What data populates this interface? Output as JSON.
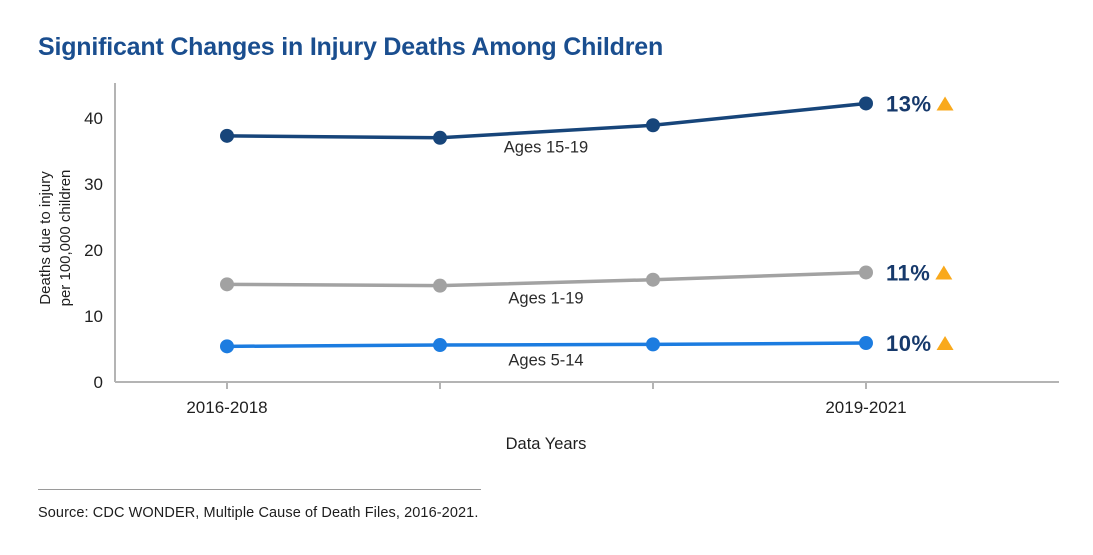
{
  "page": {
    "source_text": "Source: CDC WONDER, Multiple Cause of Death Files, 2016-2021."
  },
  "chart_data": {
    "type": "line",
    "title": "Significant Changes in Injury Deaths Among Children",
    "xlabel": "Data Years",
    "ylabel_lines": [
      "Deaths due to injury",
      "per 100,000 children"
    ],
    "x_tick_labels": [
      "2016-2018",
      "",
      "",
      "2019-2021"
    ],
    "y_ticks": [
      0,
      10,
      20,
      30,
      40
    ],
    "ylim": [
      0,
      45
    ],
    "grid": false,
    "legend_position": "inline-labels",
    "series": [
      {
        "name": "Ages 15-19",
        "values": [
          37.3,
          37.0,
          38.9,
          42.2
        ],
        "change_label": "13%",
        "change_direction": "up",
        "color": "#17457a"
      },
      {
        "name": "Ages 1-19",
        "values": [
          14.8,
          14.6,
          15.5,
          16.6
        ],
        "change_label": "11%",
        "change_direction": "up",
        "color": "#a2a2a2"
      },
      {
        "name": "Ages 5-14",
        "values": [
          5.4,
          5.6,
          5.7,
          5.9
        ],
        "change_label": "10%",
        "change_direction": "up",
        "color": "#1c7ce0"
      }
    ],
    "colors": {
      "title": "#1a4e8f",
      "axis_line": "#b4b4b4",
      "tick_text": "#1f1f1f",
      "series_label_text": "#2b2b2b",
      "pct_text": "#16396b",
      "triangle": "#f9a91c"
    }
  }
}
